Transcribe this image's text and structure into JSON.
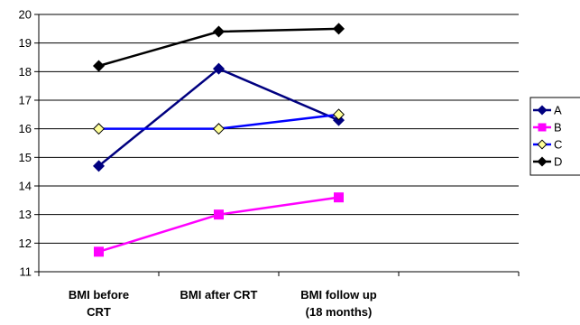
{
  "chart_data": {
    "type": "line",
    "title": "",
    "xlabel": "",
    "ylabel": "",
    "categories": [
      [
        "BMI before",
        "CRT"
      ],
      [
        "BMI after CRT"
      ],
      [
        "BMI  follow up",
        "(18 months)"
      ]
    ],
    "ylim": [
      11,
      20
    ],
    "yticks": [
      11,
      12,
      13,
      14,
      15,
      16,
      17,
      18,
      19,
      20
    ],
    "grid": "horizontal",
    "legend_position": "right",
    "series": [
      {
        "name": "A",
        "values": [
          14.7,
          18.1,
          16.3
        ],
        "color": "#000080",
        "marker": "diamond",
        "marker_fill": "#000080"
      },
      {
        "name": "B",
        "values": [
          11.7,
          13.0,
          13.6
        ],
        "color": "#ff00ff",
        "marker": "square",
        "marker_fill": "#ff00ff"
      },
      {
        "name": "C",
        "values": [
          16.0,
          16.0,
          16.5
        ],
        "color": "#0000ff",
        "marker": "diamond",
        "marker_fill": "#ffff99"
      },
      {
        "name": "D",
        "values": [
          18.2,
          19.4,
          19.5
        ],
        "color": "#000000",
        "marker": "diamond",
        "marker_fill": "#000000"
      }
    ]
  }
}
